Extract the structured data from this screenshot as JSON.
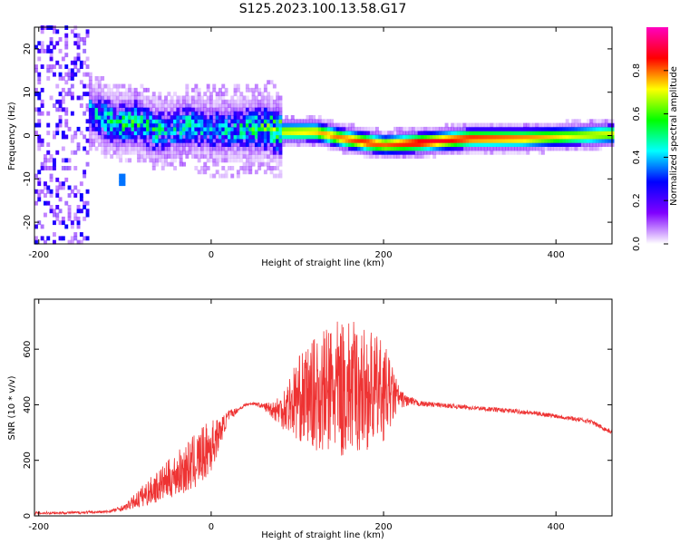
{
  "title": "S125.2023.100.13.58.G17",
  "chart_data": [
    {
      "type": "heatmap",
      "xlabel": "Height of straight line (km)",
      "ylabel": "Frequency (Hz)",
      "xlim": [
        -205,
        465
      ],
      "ylim": [
        -25,
        25
      ],
      "x_ticks": [
        -200,
        0,
        200,
        400
      ],
      "y_ticks": [
        -20,
        -10,
        0,
        10,
        20
      ],
      "colorbar": {
        "label": "Normalized spectral amplitude",
        "range": [
          0,
          1
        ],
        "ticks": [
          "0.0",
          "0.2",
          "0.4",
          "0.6",
          "0.8"
        ],
        "colormap": [
          "#ffffff",
          "#8000ff",
          "#0000ff",
          "#00ffff",
          "#00ff00",
          "#ffff00",
          "#ff0000",
          "#ff00c0"
        ]
      },
      "ridge": {
        "x": [
          -140,
          -110,
          -90,
          -70,
          -50,
          -30,
          0,
          30,
          60,
          80,
          120,
          150,
          180,
          200,
          240,
          300,
          360,
          420,
          465
        ],
        "frequency": [
          5,
          2,
          3,
          1,
          0.5,
          2,
          1,
          1,
          1.5,
          0.5,
          0.5,
          -1,
          -2,
          -2.5,
          -2,
          -1,
          -1,
          -0.5,
          0
        ],
        "amplitude": [
          0.4,
          0.5,
          0.5,
          0.5,
          0.4,
          0.45,
          0.4,
          0.45,
          0.55,
          0.7,
          0.75,
          0.8,
          0.85,
          0.8,
          0.9,
          0.85,
          0.8,
          0.7,
          0.7
        ]
      }
    },
    {
      "type": "line",
      "xlabel": "Height of straight line (km)",
      "ylabel": "SNR (10 * v/v)",
      "xlim": [
        -205,
        465
      ],
      "ylim": [
        0,
        780
      ],
      "x_ticks": [
        -200,
        0,
        200,
        400
      ],
      "y_ticks": [
        0,
        200,
        400,
        600
      ],
      "color": "#ee3333",
      "series": [
        {
          "x": [
            -205,
            -150,
            -120,
            -100,
            -80,
            -60,
            -40,
            -20,
            0,
            10,
            20,
            30,
            40,
            50,
            60,
            70,
            80,
            100,
            120,
            140,
            160,
            180,
            200,
            220,
            240,
            280,
            320,
            360,
            400,
            440,
            465
          ],
          "y": [
            10,
            12,
            15,
            30,
            70,
            110,
            150,
            190,
            250,
            300,
            360,
            380,
            400,
            405,
            395,
            385,
            380,
            420,
            440,
            450,
            460,
            455,
            450,
            420,
            405,
            395,
            385,
            375,
            360,
            340,
            300
          ],
          "spread": [
            5,
            5,
            5,
            10,
            40,
            60,
            80,
            100,
            100,
            50,
            20,
            10,
            5,
            5,
            10,
            30,
            60,
            150,
            200,
            250,
            250,
            220,
            180,
            30,
            10,
            8,
            8,
            8,
            8,
            8,
            8
          ]
        }
      ]
    }
  ]
}
